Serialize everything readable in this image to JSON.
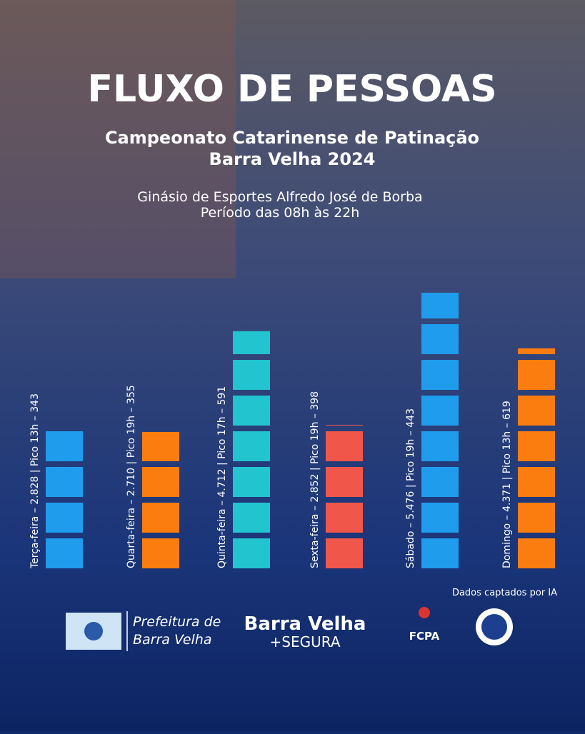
{
  "chart_data": {
    "type": "bar",
    "title": "FLUXO DE PESSOAS",
    "subtitle": [
      "Campeonato Catarinense de Patinação",
      "Barra Velha 2024"
    ],
    "venue": [
      "Ginásio de Esportes Alfredo José de Borba",
      "Período das 08h às 22h"
    ],
    "categories": [
      "Terça-feira – 2.828 | Pico 13h – 343",
      "Quarta-feira – 2.710 | Pico 19h – 355",
      "Quinta-feira – 4.712 | Pico 17h – 591",
      "Sexta-feira – 2.852 | Pico 19h – 398",
      "Sábado – 5.476 | Pico 19h – 443",
      "Domingo – 4.371 | Pico 13h – 619"
    ],
    "values": [
      2828,
      2710,
      4712,
      2852,
      5476,
      4371
    ],
    "colors": [
      "#1f9cec",
      "#fb7d10",
      "#22c4cf",
      "#f0574a",
      "#1f9cec",
      "#fb7d10"
    ],
    "source": "Dados captados por IA"
  },
  "footer": {
    "prefeitura": [
      "Prefeitura de",
      "Barra Velha"
    ],
    "program": [
      "Barra Velha",
      "+SEGURA"
    ],
    "federation": "FCPA"
  }
}
